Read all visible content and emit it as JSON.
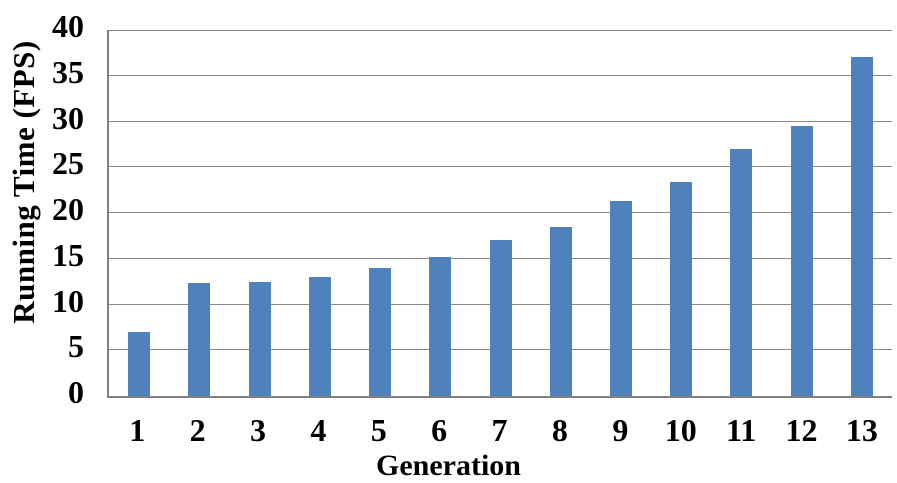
{
  "chart_data": {
    "type": "bar",
    "title": "",
    "xlabel": "Generation",
    "ylabel": "Running Time (FPS)",
    "categories": [
      "1",
      "2",
      "3",
      "4",
      "5",
      "6",
      "7",
      "8",
      "9",
      "10",
      "11",
      "12",
      "13"
    ],
    "values": [
      7,
      12.3,
      12.5,
      13,
      14,
      15.2,
      17,
      18.5,
      21.3,
      23.4,
      27,
      29.5,
      37
    ],
    "ylim": [
      0,
      40
    ],
    "yticks": [
      0,
      5,
      10,
      15,
      20,
      25,
      30,
      35,
      40
    ],
    "grid": true,
    "legend": false,
    "bar_color": "#4F81BD",
    "gridline_color": "#898989",
    "axis_color": "#808080",
    "text_color": "#000000",
    "background_color": "#FFFFFF"
  }
}
